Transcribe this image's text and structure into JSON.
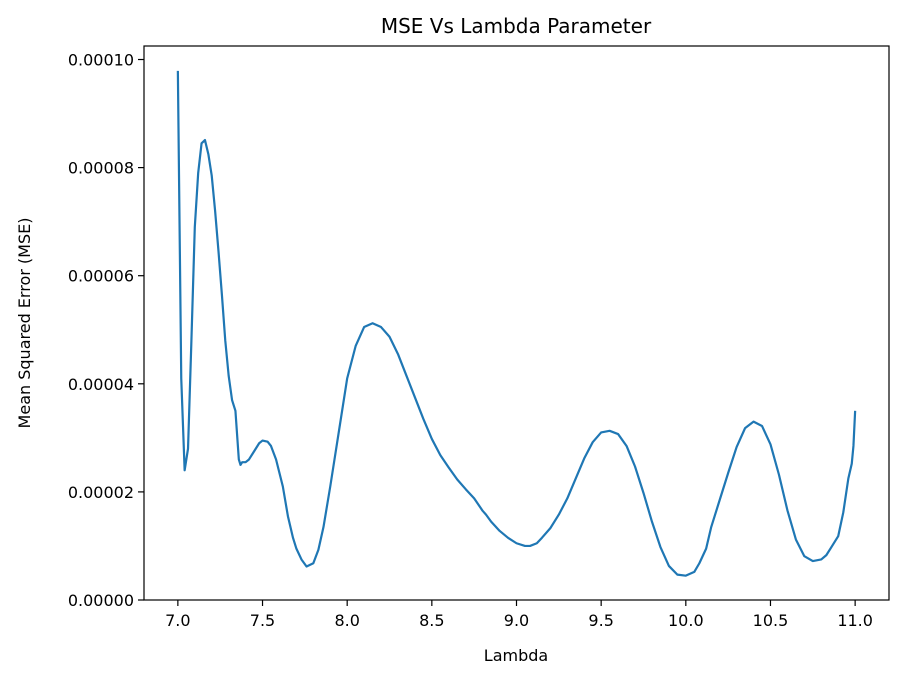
{
  "chart_data": {
    "type": "line",
    "title": "MSE Vs Lambda Parameter",
    "xlabel": "Lambda",
    "ylabel": "Mean Squared Error (MSE)",
    "xlim": [
      6.8,
      11.2
    ],
    "ylim": [
      0.0,
      0.0001025
    ],
    "grid": false,
    "legend": "none",
    "x_ticks": [
      7.0,
      7.5,
      8.0,
      8.5,
      9.0,
      9.5,
      10.0,
      10.5,
      11.0
    ],
    "x_tick_labels": [
      "7.0",
      "7.5",
      "8.0",
      "8.5",
      "9.0",
      "9.5",
      "10.0",
      "10.5",
      "11.0"
    ],
    "y_ticks": [
      0.0,
      2e-05,
      4e-05,
      6e-05,
      8e-05,
      0.0001
    ],
    "y_tick_labels": [
      "0.00000",
      "0.00002",
      "0.00004",
      "0.00006",
      "0.00008",
      "0.00010"
    ],
    "series": [
      {
        "color": "#1f77b4",
        "x": [
          7.0,
          7.02,
          7.04,
          7.06,
          7.08,
          7.1,
          7.12,
          7.14,
          7.16,
          7.18,
          7.2,
          7.22,
          7.24,
          7.26,
          7.28,
          7.3,
          7.32,
          7.34,
          7.36,
          7.37,
          7.38,
          7.4,
          7.42,
          7.45,
          7.48,
          7.5,
          7.53,
          7.55,
          7.58,
          7.6,
          7.62,
          7.65,
          7.68,
          7.7,
          7.73,
          7.76,
          7.8,
          7.83,
          7.86,
          7.9,
          7.95,
          8.0,
          8.05,
          8.1,
          8.15,
          8.2,
          8.25,
          8.3,
          8.35,
          8.4,
          8.45,
          8.5,
          8.55,
          8.6,
          8.65,
          8.7,
          8.75,
          8.8,
          8.82,
          8.85,
          8.9,
          8.95,
          9.0,
          9.05,
          9.08,
          9.12,
          9.15,
          9.2,
          9.25,
          9.3,
          9.35,
          9.4,
          9.45,
          9.5,
          9.55,
          9.6,
          9.65,
          9.7,
          9.75,
          9.8,
          9.85,
          9.9,
          9.95,
          10.0,
          10.05,
          10.08,
          10.12,
          10.15,
          10.2,
          10.25,
          10.3,
          10.35,
          10.4,
          10.45,
          10.5,
          10.55,
          10.6,
          10.65,
          10.7,
          10.75,
          10.8,
          10.83,
          10.86,
          10.9,
          10.93,
          10.96,
          10.98,
          10.99,
          11.0
        ],
        "y": [
          9.79e-05,
          4.1e-05,
          2.4e-05,
          2.8e-05,
          4.8e-05,
          6.9e-05,
          7.9e-05,
          8.45e-05,
          8.51e-05,
          8.25e-05,
          7.85e-05,
          7.2e-05,
          6.45e-05,
          5.65e-05,
          4.8e-05,
          4.15e-05,
          3.7e-05,
          3.5e-05,
          2.6e-05,
          2.5e-05,
          2.55e-05,
          2.55e-05,
          2.6e-05,
          2.75e-05,
          2.9e-05,
          2.95e-05,
          2.93e-05,
          2.85e-05,
          2.6e-05,
          2.35e-05,
          2.1e-05,
          1.55e-05,
          1.15e-05,
          9.5e-06,
          7.5e-06,
          6.2e-06,
          6.8e-06,
          9.3e-06,
          1.35e-05,
          2.1e-05,
          3.1e-05,
          4.1e-05,
          4.7e-05,
          5.05e-05,
          5.12e-05,
          5.05e-05,
          4.87e-05,
          4.55e-05,
          4.15e-05,
          3.75e-05,
          3.35e-05,
          2.98e-05,
          2.68e-05,
          2.45e-05,
          2.23e-05,
          2.05e-05,
          1.88e-05,
          1.65e-05,
          1.58e-05,
          1.45e-05,
          1.28e-05,
          1.15e-05,
          1.05e-05,
          1e-05,
          1e-05,
          1.05e-05,
          1.15e-05,
          1.33e-05,
          1.58e-05,
          1.88e-05,
          2.25e-05,
          2.62e-05,
          2.92e-05,
          3.1e-05,
          3.13e-05,
          3.07e-05,
          2.85e-05,
          2.47e-05,
          1.98e-05,
          1.45e-05,
          9.8e-06,
          6.3e-06,
          4.7e-06,
          4.5e-06,
          5.2e-06,
          6.8e-06,
          9.5e-06,
          1.35e-05,
          1.85e-05,
          2.35e-05,
          2.83e-05,
          3.18e-05,
          3.3e-05,
          3.22e-05,
          2.88e-05,
          2.32e-05,
          1.66e-05,
          1.12e-05,
          8.1e-06,
          7.2e-06,
          7.5e-06,
          8.3e-06,
          9.8e-06,
          1.18e-05,
          1.62e-05,
          2.25e-05,
          2.52e-05,
          2.85e-05,
          3.5e-05
        ]
      }
    ]
  }
}
